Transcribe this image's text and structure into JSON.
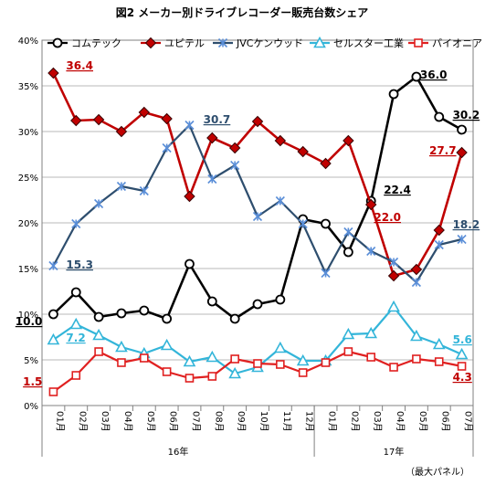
{
  "chart_data": {
    "type": "line",
    "title": "図2 メーカー別ドライブレコーダー販売台数シェア",
    "source_note": "（最大パネル）",
    "x_year_labels": [
      {
        "label": "16年"
      },
      {
        "label": "17年"
      }
    ],
    "categories": [
      "01月",
      "02月",
      "03月",
      "04月",
      "05月",
      "06月",
      "07月",
      "08月",
      "09月",
      "10月",
      "11月",
      "12月",
      "01月",
      "02月",
      "03月",
      "04月",
      "05月",
      "06月",
      "07月"
    ],
    "year_of_category": [
      "16年",
      "16年",
      "16年",
      "16年",
      "16年",
      "16年",
      "16年",
      "16年",
      "16年",
      "16年",
      "16年",
      "16年",
      "17年",
      "17年",
      "17年",
      "17年",
      "17年",
      "17年",
      "17年"
    ],
    "ylim": [
      0,
      40
    ],
    "yticks": [
      0,
      5,
      10,
      15,
      20,
      25,
      30,
      35,
      40
    ],
    "ytick_labels": [
      "0%",
      "5%",
      "10%",
      "15%",
      "20%",
      "25%",
      "30%",
      "35%",
      "40%"
    ],
    "grid": true,
    "legend_position": "top",
    "series": [
      {
        "name": "コムテック",
        "color": "#000000",
        "marker": "circle",
        "values": [
          10.0,
          12.4,
          9.7,
          10.1,
          10.4,
          9.5,
          15.5,
          11.4,
          9.5,
          11.1,
          11.6,
          20.4,
          19.9,
          16.8,
          22.4,
          34.1,
          36.0,
          31.6,
          30.2
        ]
      },
      {
        "name": "ユピテル",
        "color": "#c00000",
        "marker": "diamond",
        "values": [
          36.4,
          31.2,
          31.3,
          30.0,
          32.1,
          31.4,
          22.9,
          29.3,
          28.2,
          31.1,
          29.0,
          27.8,
          26.5,
          29.0,
          22.0,
          14.2,
          14.9,
          19.2,
          27.7
        ]
      },
      {
        "name": "JVCケンウッド",
        "color": "#2e4e6e",
        "marker": "asterisk",
        "values": [
          15.3,
          19.9,
          22.1,
          24.0,
          23.5,
          28.2,
          30.7,
          24.8,
          26.3,
          20.7,
          22.4,
          19.9,
          14.5,
          19.0,
          16.9,
          15.7,
          13.5,
          17.6,
          18.2
        ]
      },
      {
        "name": "セルスター工業",
        "color": "#33b5d9",
        "marker": "triangle",
        "values": [
          7.2,
          8.9,
          7.7,
          6.4,
          5.7,
          6.6,
          4.8,
          5.3,
          3.5,
          4.2,
          6.3,
          4.9,
          4.9,
          7.8,
          7.9,
          10.8,
          7.6,
          6.7,
          5.6
        ]
      },
      {
        "name": "パイオニア",
        "color": "#e02020",
        "marker": "square",
        "values": [
          1.5,
          3.3,
          5.9,
          4.7,
          5.2,
          3.7,
          3.0,
          3.2,
          5.1,
          4.6,
          4.5,
          3.6,
          4.7,
          5.9,
          5.3,
          4.2,
          5.1,
          4.8,
          4.3
        ]
      }
    ],
    "annotations": [
      {
        "text": "36.4",
        "color": "#c00000",
        "series": 1,
        "index": 0
      },
      {
        "text": "15.3",
        "color": "#2e4e6e",
        "series": 2,
        "index": 0
      },
      {
        "text": "10.0",
        "color": "#000000",
        "series": 0,
        "index": 0
      },
      {
        "text": "7.2",
        "color": "#33b5d9",
        "series": 3,
        "index": 0
      },
      {
        "text": "1.5",
        "color": "#c00000",
        "series": 4,
        "index": 0
      },
      {
        "text": "30.7",
        "color": "#2e4e6e",
        "series": 2,
        "index": 6
      },
      {
        "text": "22.4",
        "color": "#000000",
        "series": 0,
        "index": 14
      },
      {
        "text": "22.0",
        "color": "#c00000",
        "series": 1,
        "index": 14
      },
      {
        "text": "36.0",
        "color": "#000000",
        "series": 0,
        "index": 16
      },
      {
        "text": "30.2",
        "color": "#000000",
        "series": 0,
        "index": 18
      },
      {
        "text": "27.7",
        "color": "#c00000",
        "series": 1,
        "index": 18
      },
      {
        "text": "18.2",
        "color": "#2e4e6e",
        "series": 2,
        "index": 18
      },
      {
        "text": "5.6",
        "color": "#33b5d9",
        "series": 3,
        "index": 18
      },
      {
        "text": "4.3",
        "color": "#c00000",
        "series": 4,
        "index": 18
      }
    ]
  }
}
